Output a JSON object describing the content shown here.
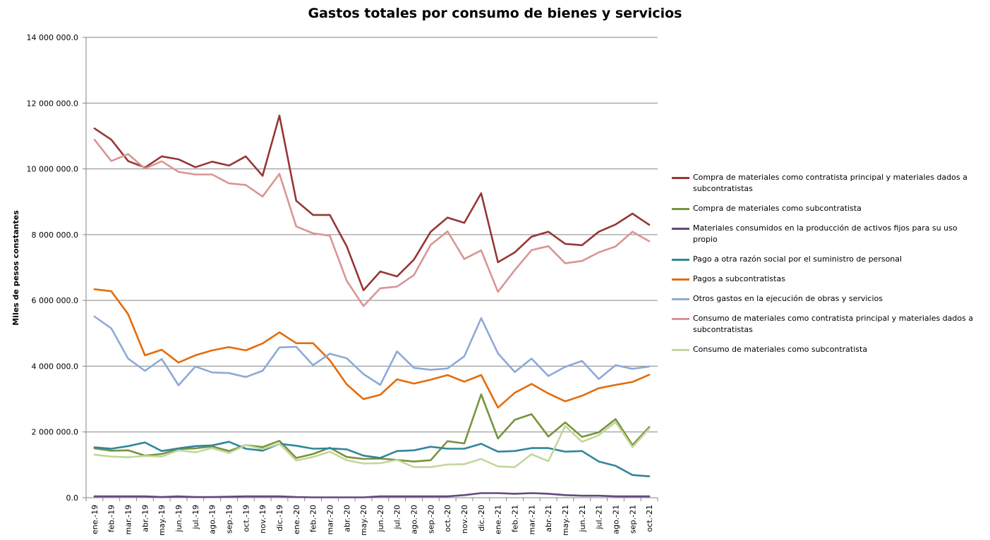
{
  "chart_data": {
    "type": "line",
    "title": "Gastos totales por consumo de bienes y servicios",
    "ylabel": "Miles de pesos constantes",
    "xlabel": "",
    "ylim": [
      0,
      14000000
    ],
    "yticks": [
      0,
      2000000,
      4000000,
      6000000,
      8000000,
      10000000,
      12000000,
      14000000
    ],
    "ytick_labels": [
      "0.0",
      "2 000 000.0",
      "4 000 000.0",
      "6 000 000.0",
      "8 000 000.0",
      "10 000 000.0",
      "12 000 000.0",
      "14 000 000.0"
    ],
    "grid": "horizontal",
    "legend_position": "right",
    "categories": [
      "ene.-19",
      "feb.-19",
      "mar.-19",
      "abr.-19",
      "may.-19",
      "jun.-19",
      "jul.-19",
      "ago.-19",
      "sep.-19",
      "oct.-19",
      "nov.-19",
      "dic.-19",
      "ene.-20",
      "feb.-20",
      "mar.-20",
      "abr.-20",
      "may.-20",
      "jun.-20",
      "jul.-20",
      "ago.-20",
      "sep.-20",
      "oct.-20",
      "nov.-20",
      "dic.-20",
      "ene.-21",
      "feb.-21",
      "mar.-21",
      "abr.-21",
      "may.-21",
      "jun.-21",
      "jul.-21",
      "ago.-21",
      "sep.-21",
      "oct.-21"
    ],
    "series": [
      {
        "name": "Compra de materiales como contratista principal y materiales dados a subcontratistas",
        "color": "#953735",
        "values": [
          11230000,
          10890000,
          10240000,
          10040000,
          10380000,
          10290000,
          10050000,
          10220000,
          10100000,
          10380000,
          9790000,
          11620000,
          9030000,
          8600000,
          8600000,
          7650000,
          6310000,
          6880000,
          6730000,
          7240000,
          8090000,
          8520000,
          8360000,
          9260000,
          7160000,
          7460000,
          7940000,
          8090000,
          7720000,
          7680000,
          8090000,
          8310000,
          8640000,
          8300000
        ]
      },
      {
        "name": "Compra de materiales como subcontratista",
        "color": "#77933C",
        "values": [
          1500000,
          1430000,
          1440000,
          1280000,
          1330000,
          1480000,
          1500000,
          1560000,
          1420000,
          1600000,
          1540000,
          1730000,
          1210000,
          1330000,
          1520000,
          1240000,
          1180000,
          1190000,
          1150000,
          1100000,
          1140000,
          1720000,
          1650000,
          3140000,
          1800000,
          2370000,
          2540000,
          1860000,
          2290000,
          1850000,
          1990000,
          2390000,
          1600000,
          2150000
        ]
      },
      {
        "name": "Materiales consumidos en la producción de activos fijos para su uso propio",
        "color": "#604A7B",
        "values": [
          40000,
          40000,
          40000,
          40000,
          20000,
          40000,
          20000,
          20000,
          30000,
          40000,
          40000,
          40000,
          20000,
          10000,
          10000,
          10000,
          10000,
          40000,
          40000,
          40000,
          40000,
          40000,
          80000,
          140000,
          140000,
          120000,
          140000,
          120000,
          80000,
          60000,
          60000,
          40000,
          40000,
          40000
        ]
      },
      {
        "name": "Pago a otra razón social por el suministro de personal",
        "color": "#31859C",
        "values": [
          1530000,
          1490000,
          1570000,
          1680000,
          1420000,
          1500000,
          1570000,
          1590000,
          1700000,
          1490000,
          1430000,
          1640000,
          1580000,
          1490000,
          1500000,
          1470000,
          1280000,
          1210000,
          1420000,
          1440000,
          1550000,
          1490000,
          1490000,
          1640000,
          1400000,
          1420000,
          1510000,
          1510000,
          1400000,
          1420000,
          1100000,
          970000,
          690000,
          650000
        ]
      },
      {
        "name": "Pagos a subcontratistas",
        "color": "#E46C0A",
        "values": [
          6340000,
          6280000,
          5580000,
          4330000,
          4500000,
          4110000,
          4330000,
          4480000,
          4580000,
          4480000,
          4690000,
          5030000,
          4700000,
          4700000,
          4180000,
          3450000,
          3000000,
          3130000,
          3600000,
          3470000,
          3590000,
          3730000,
          3530000,
          3730000,
          2740000,
          3190000,
          3460000,
          3170000,
          2930000,
          3100000,
          3330000,
          3430000,
          3520000,
          3740000
        ]
      },
      {
        "name": "Otros gastos en la ejecución de obras y servicios",
        "color": "#8EA9D8",
        "values": [
          5510000,
          5150000,
          4230000,
          3860000,
          4220000,
          3420000,
          3990000,
          3810000,
          3790000,
          3670000,
          3860000,
          4570000,
          4590000,
          4030000,
          4380000,
          4240000,
          3760000,
          3430000,
          4450000,
          3950000,
          3890000,
          3930000,
          4300000,
          5460000,
          4390000,
          3820000,
          4230000,
          3700000,
          3980000,
          4160000,
          3610000,
          4030000,
          3920000,
          3990000
        ]
      },
      {
        "name": "Consumo de materiales como contratista principal y materiales dados a subcontratistas",
        "color": "#D99594",
        "values": [
          10890000,
          10240000,
          10450000,
          10010000,
          10230000,
          9910000,
          9830000,
          9830000,
          9560000,
          9510000,
          9160000,
          9850000,
          8250000,
          8040000,
          7970000,
          6600000,
          5830000,
          6370000,
          6420000,
          6770000,
          7690000,
          8100000,
          7260000,
          7520000,
          6260000,
          6920000,
          7530000,
          7650000,
          7130000,
          7200000,
          7460000,
          7640000,
          8090000,
          7800000
        ]
      },
      {
        "name": "Consumo de materiales como subcontratista",
        "color": "#C3D69B",
        "values": [
          1310000,
          1250000,
          1230000,
          1270000,
          1250000,
          1440000,
          1380000,
          1510000,
          1360000,
          1600000,
          1480000,
          1640000,
          1130000,
          1240000,
          1400000,
          1140000,
          1040000,
          1050000,
          1150000,
          930000,
          930000,
          1010000,
          1020000,
          1180000,
          950000,
          930000,
          1320000,
          1110000,
          2180000,
          1700000,
          1900000,
          2300000,
          1540000,
          2100000
        ]
      }
    ]
  }
}
